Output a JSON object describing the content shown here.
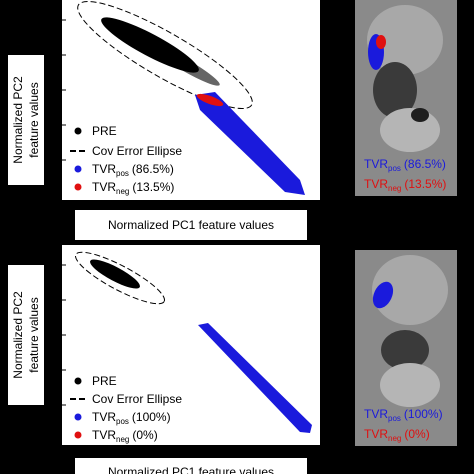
{
  "top_panel": {
    "y_label": [
      "Normalized PC2",
      "feature values"
    ],
    "x_label": "Normalized PC1 feature values",
    "legend": {
      "pre": "PRE",
      "ellipse": "Cov Error Ellipse",
      "pos": {
        "main": "TVR",
        "sub": "pos",
        "pct": "(86.5%)"
      },
      "neg": {
        "main": "TVR",
        "sub": "neg",
        "pct": "(13.5%)"
      }
    },
    "image_legend": {
      "pos": {
        "main": "TVR",
        "sub": "pos",
        "pct": "(86.5%)"
      },
      "neg": {
        "main": "TVR",
        "sub": "neg",
        "pct": "(13.5%)"
      }
    }
  },
  "bottom_panel": {
    "y_label": [
      "Normalized PC2",
      "feature values"
    ],
    "x_label": "Normalized PC1 feature values",
    "legend": {
      "pre": "PRE",
      "ellipse": "Cov Error Ellipse",
      "pos": {
        "main": "TVR",
        "sub": "pos",
        "pct": "(100%)"
      },
      "neg": {
        "main": "TVR",
        "sub": "neg",
        "pct": "(0%)"
      }
    },
    "image_legend": {
      "pos": {
        "main": "TVR",
        "sub": "pos",
        "pct": "(100%)"
      },
      "neg": {
        "main": "TVR",
        "sub": "neg",
        "pct": "(0%)"
      }
    }
  }
}
